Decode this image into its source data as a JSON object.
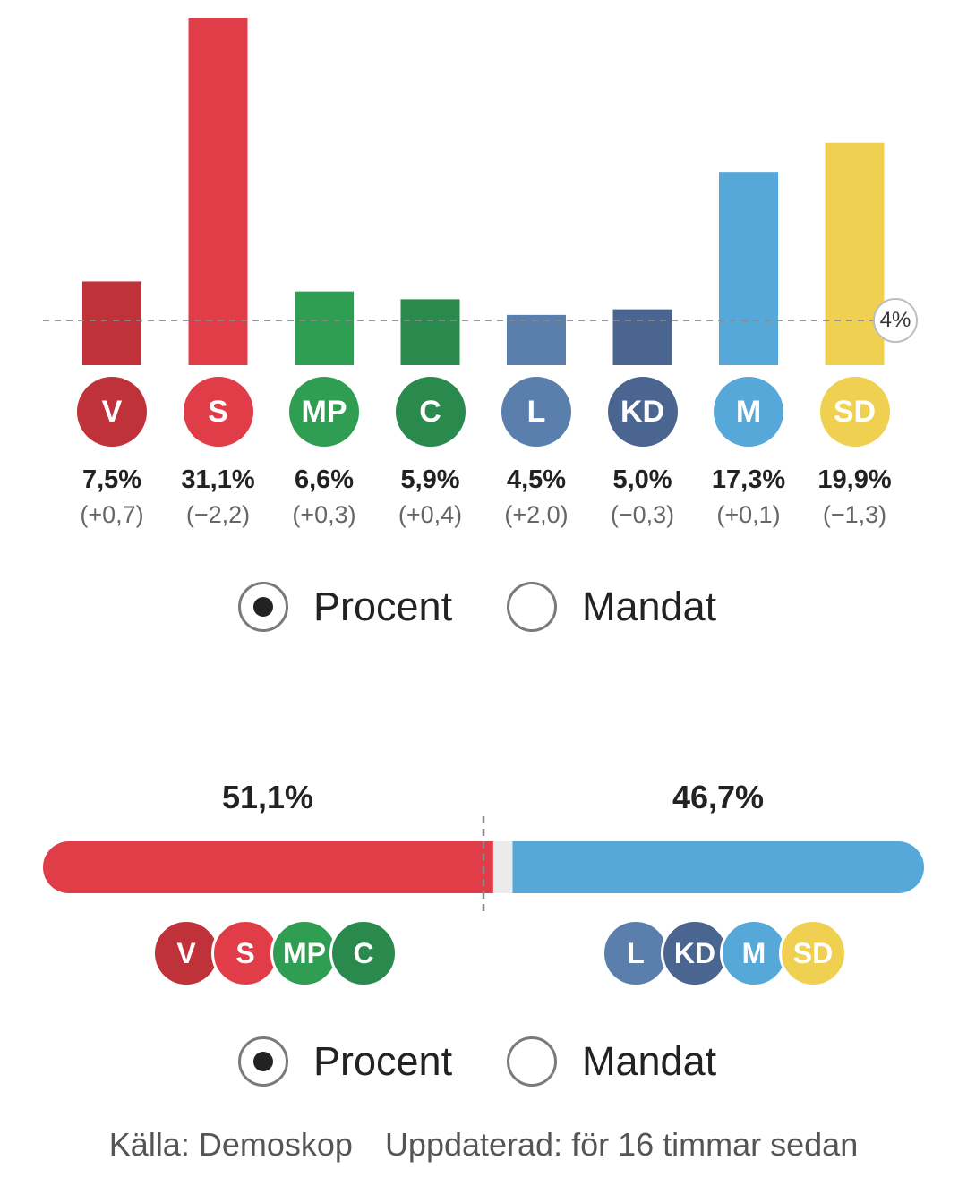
{
  "chart_data": [
    {
      "type": "bar",
      "categories": [
        "V",
        "S",
        "MP",
        "C",
        "L",
        "KD",
        "M",
        "SD"
      ],
      "values": [
        7.5,
        31.1,
        6.6,
        5.9,
        4.5,
        5.0,
        17.3,
        19.9
      ],
      "value_labels": [
        "7,5%",
        "31,1%",
        "6,6%",
        "5,9%",
        "4,5%",
        "5,0%",
        "17,3%",
        "19,9%"
      ],
      "changes": [
        "(+0,7)",
        "(−2,2)",
        "(+0,3)",
        "(+0,4)",
        "(+2,0)",
        "(−0,3)",
        "(+0,1)",
        "(−1,3)"
      ],
      "colors": [
        "#c0323a",
        "#e03d48",
        "#2f9e52",
        "#2a8a4e",
        "#5a7fad",
        "#4a6590",
        "#55a8d8",
        "#efd050"
      ],
      "threshold": 4,
      "threshold_label": "4%",
      "ylim": [
        0,
        31.1
      ],
      "grid": false
    },
    {
      "type": "bar",
      "orientation": "horizontal-stacked",
      "blocks": [
        {
          "parties": [
            "V",
            "S",
            "MP",
            "C"
          ],
          "value": 51.1,
          "label": "51,1%",
          "color": "#e03d48"
        },
        {
          "parties": [
            "L",
            "KD",
            "M",
            "SD"
          ],
          "value": 46.7,
          "label": "46,7%",
          "color": "#55a8d8"
        }
      ],
      "remainder_color": "#ebebeb",
      "xlim": [
        0,
        100
      ]
    }
  ],
  "controls": {
    "toggle1": {
      "procent": "Procent",
      "mandat": "Mandat",
      "selected": "procent"
    },
    "toggle2": {
      "procent": "Procent",
      "mandat": "Mandat",
      "selected": "procent"
    }
  },
  "footer": {
    "source": "Källa: Demoskop",
    "updated": "Uppdaterad: för 16 timmar sedan"
  }
}
